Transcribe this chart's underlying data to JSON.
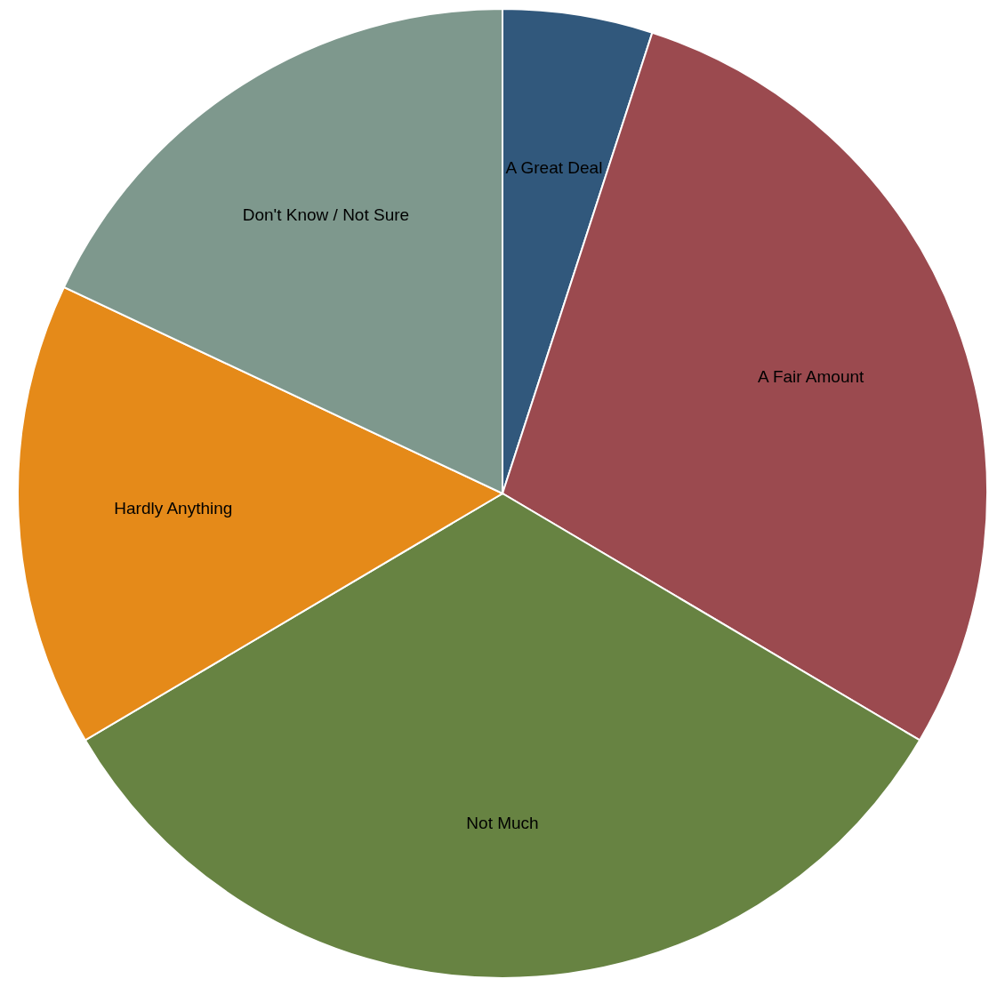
{
  "chart_data": {
    "type": "pie",
    "categories": [
      "A Great Deal",
      "A Fair Amount",
      "Not Much",
      "Hardly Anything",
      "Don't Know / Not Sure"
    ],
    "values": [
      5,
      28.5,
      33,
      15.5,
      18
    ],
    "colors": [
      "#31587c",
      "#9b4a4f",
      "#678342",
      "#e58a19",
      "#7e988d"
    ]
  }
}
